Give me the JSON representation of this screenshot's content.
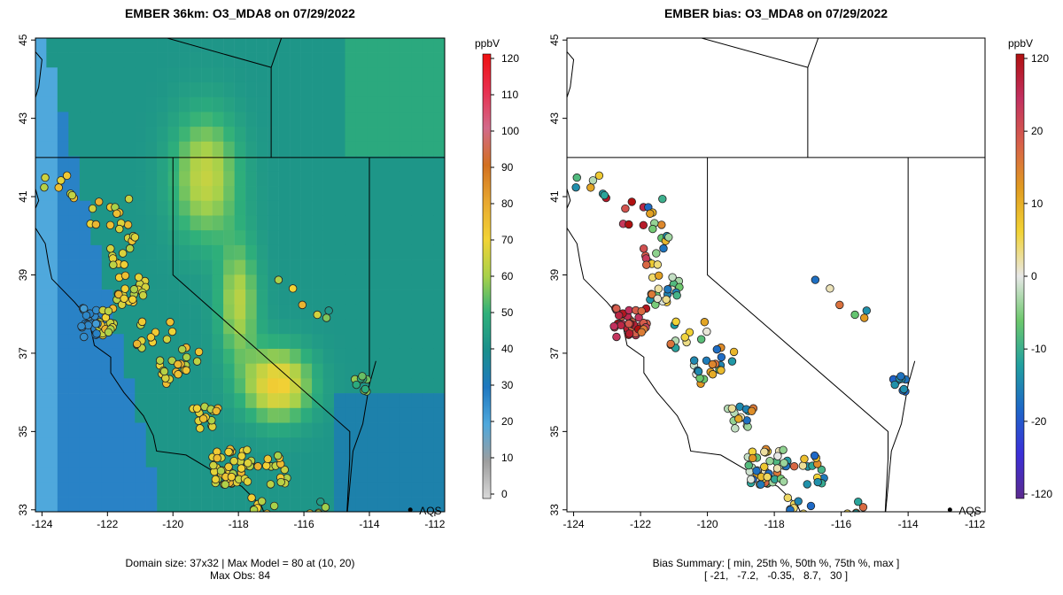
{
  "left_panel": {
    "title": "EMBER 36km: O3_MDA8 on 07/29/2022",
    "footer_line1": "Domain size: 37x32 | Max Model = 80 at (10, 20)",
    "footer_line2": "Max Obs: 84",
    "colorbar_label": "ppbV",
    "colorbar_ticks": [
      "0",
      "10",
      "20",
      "30",
      "40",
      "50",
      "60",
      "70",
      "80",
      "90",
      "100",
      "110",
      "120"
    ]
  },
  "right_panel": {
    "title": "EMBER bias: O3_MDA8 on 07/29/2022",
    "footer_line1": "Bias Summary: [ min, 25th %, 50th %, 75th %, max ]",
    "footer_line2": "[ -21,   -7.2,   -0.35,   8.7,   30 ]",
    "colorbar_label": "ppbV",
    "colorbar_ticks": [
      "-120",
      "-20",
      "-10",
      "0",
      "10",
      "20",
      "120"
    ]
  },
  "x_ticks": [
    "-124",
    "-122",
    "-120",
    "-118",
    "-116",
    "-114",
    "-112"
  ],
  "y_ticks": [
    "33",
    "35",
    "37",
    "39",
    "41",
    "43",
    "45"
  ],
  "legend_marker_label": "AQS",
  "colors": {
    "conc_scale": [
      "#d9d9d9",
      "#9e9e9e",
      "#4fa8dc",
      "#1f78c0",
      "#1a8f8c",
      "#2fb07a",
      "#a8d14a",
      "#f2d335",
      "#e8a830",
      "#d27020",
      "#d26a8a",
      "#e83050",
      "#ee1010"
    ],
    "bias_scale": [
      "#5b2a8e",
      "#3b2fd8",
      "#1e66c8",
      "#21a0a0",
      "#6cc86c",
      "#e8e8e8",
      "#f2d335",
      "#e09a20",
      "#d75f4a",
      "#c23060",
      "#b01010"
    ]
  }
}
